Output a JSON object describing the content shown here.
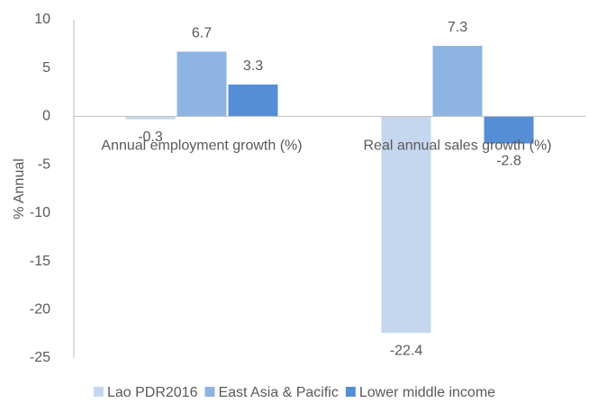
{
  "chart_data": {
    "type": "bar",
    "categories": [
      "Annual employment growth (%)",
      "Real annual sales growth (%)"
    ],
    "y_label": "% Annual",
    "series": [
      {
        "name": "Lao PDR2016",
        "color": "#c5d7ef",
        "values": [
          -0.3,
          -22.4
        ]
      },
      {
        "name": "East Asia & Pacific",
        "color": "#8eb4e3",
        "values": [
          6.7,
          7.3
        ]
      },
      {
        "name": "Lower middle income",
        "color": "#558ed5",
        "values": [
          3.3,
          -2.8
        ]
      }
    ],
    "ylim": [
      -25,
      10
    ],
    "yticks": [
      -25,
      -20,
      -15,
      -10,
      -5,
      0,
      5,
      10
    ],
    "legend": "bottom"
  }
}
